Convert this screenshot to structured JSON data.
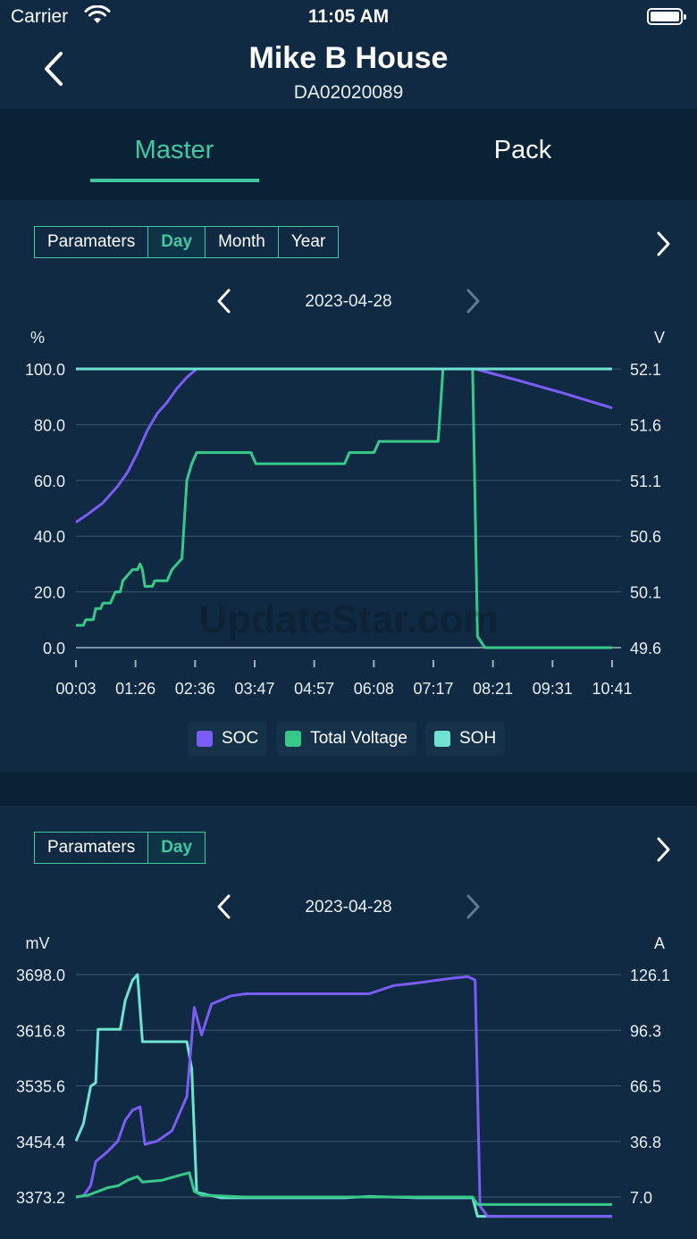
{
  "status_bar": {
    "carrier": "Carrier",
    "time": "11:05 AM"
  },
  "nav": {
    "title": "Mike B House",
    "subtitle": "DA02020089"
  },
  "tabs": [
    {
      "label": "Master",
      "active": true
    },
    {
      "label": "Pack",
      "active": false
    }
  ],
  "colors": {
    "accent": "#42c9a4",
    "soc": "#7b5cf5",
    "voltage": "#37c98a",
    "soh": "#6fe3d3",
    "background": "#0f2a42"
  },
  "watermark": "UpdateStar.com",
  "panel1": {
    "segments": [
      {
        "label": "Paramaters",
        "active": false
      },
      {
        "label": "Day",
        "active": true
      },
      {
        "label": "Month",
        "active": false
      },
      {
        "label": "Year",
        "active": false
      }
    ],
    "date": "2023-04-28",
    "legend": [
      {
        "label": "SOC",
        "color": "#7b5cf5"
      },
      {
        "label": "Total Voltage",
        "color": "#37c98a"
      },
      {
        "label": "SOH",
        "color": "#6fe3d3"
      }
    ]
  },
  "panel2": {
    "segments": [
      {
        "label": "Paramaters",
        "active": false
      },
      {
        "label": "Day",
        "active": true
      }
    ],
    "date": "2023-04-28"
  },
  "chart_data": [
    {
      "type": "line",
      "left_unit": "%",
      "right_unit": "V",
      "left_ticks": [
        "100.0",
        "80.0",
        "60.0",
        "40.0",
        "20.0",
        "0.0"
      ],
      "right_ticks": [
        "52.1",
        "51.6",
        "51.1",
        "50.6",
        "50.1",
        "49.6"
      ],
      "left_range": [
        0,
        100
      ],
      "right_range": [
        49.6,
        52.1
      ],
      "x_ticks": [
        "00:03",
        "01:26",
        "02:36",
        "03:47",
        "04:57",
        "06:08",
        "07:17",
        "08:21",
        "09:31",
        "10:41"
      ],
      "x_range_hours": [
        0.05,
        10.93
      ],
      "grid": true,
      "legend_position": "bottom-center",
      "series": [
        {
          "name": "SOC",
          "axis": "left",
          "color": "#7b5cf5",
          "points": [
            [
              0.05,
              45
            ],
            [
              0.3,
              48
            ],
            [
              0.6,
              52
            ],
            [
              0.9,
              58
            ],
            [
              1.1,
              63
            ],
            [
              1.3,
              70
            ],
            [
              1.5,
              78
            ],
            [
              1.7,
              84
            ],
            [
              1.9,
              88
            ],
            [
              2.1,
              93
            ],
            [
              2.3,
              97
            ],
            [
              2.5,
              100
            ],
            [
              8.15,
              100
            ],
            [
              9.0,
              96
            ],
            [
              10.0,
              91
            ],
            [
              10.93,
              86
            ]
          ]
        },
        {
          "name": "Total Voltage",
          "axis": "right",
          "color": "#37c98a",
          "points": [
            [
              0.05,
              49.8
            ],
            [
              0.2,
              49.8
            ],
            [
              0.25,
              49.85
            ],
            [
              0.4,
              49.85
            ],
            [
              0.45,
              49.95
            ],
            [
              0.55,
              49.95
            ],
            [
              0.6,
              50.0
            ],
            [
              0.75,
              50.0
            ],
            [
              0.85,
              50.1
            ],
            [
              0.95,
              50.1
            ],
            [
              1.0,
              50.2
            ],
            [
              1.1,
              50.25
            ],
            [
              1.2,
              50.3
            ],
            [
              1.3,
              50.3
            ],
            [
              1.35,
              50.35
            ],
            [
              1.4,
              50.3
            ],
            [
              1.45,
              50.15
            ],
            [
              1.6,
              50.15
            ],
            [
              1.65,
              50.2
            ],
            [
              1.9,
              50.2
            ],
            [
              2.0,
              50.3
            ],
            [
              2.2,
              50.4
            ],
            [
              2.3,
              51.1
            ],
            [
              2.4,
              51.25
            ],
            [
              2.5,
              51.35
            ],
            [
              3.6,
              51.35
            ],
            [
              3.7,
              51.25
            ],
            [
              5.5,
              51.25
            ],
            [
              5.6,
              51.35
            ],
            [
              6.1,
              51.35
            ],
            [
              6.2,
              51.45
            ],
            [
              7.4,
              51.45
            ],
            [
              7.5,
              52.1
            ],
            [
              8.1,
              52.1
            ],
            [
              8.2,
              49.7
            ],
            [
              8.35,
              49.6
            ],
            [
              10.93,
              49.6
            ]
          ]
        },
        {
          "name": "SOH",
          "axis": "left",
          "color": "#6fe3d3",
          "points": [
            [
              0.05,
              100
            ],
            [
              10.93,
              100
            ]
          ]
        }
      ]
    },
    {
      "type": "line",
      "left_unit": "mV",
      "right_unit": "A",
      "left_ticks": [
        "3698.0",
        "3616.8",
        "3535.6",
        "3454.4",
        "3373.2"
      ],
      "right_ticks": [
        "126.1",
        "96.3",
        "66.5",
        "36.8",
        "7.0"
      ],
      "left_range": [
        3373.2,
        3698.0
      ],
      "right_range": [
        7.0,
        126.1
      ],
      "x_range_hours": [
        0.05,
        10.93
      ],
      "grid": true,
      "series": [
        {
          "axis": "left",
          "color": "#6fe3d3",
          "points": [
            [
              0.05,
              3455
            ],
            [
              0.2,
              3480
            ],
            [
              0.35,
              3535
            ],
            [
              0.45,
              3540
            ],
            [
              0.5,
              3618
            ],
            [
              0.95,
              3618
            ],
            [
              1.05,
              3660
            ],
            [
              1.2,
              3690
            ],
            [
              1.3,
              3698
            ],
            [
              1.4,
              3600
            ],
            [
              2.3,
              3600
            ],
            [
              2.4,
              3560
            ],
            [
              2.5,
              3380
            ],
            [
              3.0,
              3372
            ],
            [
              5.5,
              3372
            ],
            [
              6.0,
              3374
            ],
            [
              7.0,
              3372
            ],
            [
              8.1,
              3372
            ],
            [
              8.2,
              3345
            ],
            [
              10.93,
              3345
            ]
          ]
        },
        {
          "axis": "left",
          "color": "#7b5cf5",
          "points": [
            [
              0.05,
              3373
            ],
            [
              0.2,
              3375
            ],
            [
              0.35,
              3390
            ],
            [
              0.45,
              3425
            ],
            [
              0.7,
              3440
            ],
            [
              0.9,
              3455
            ],
            [
              1.05,
              3485
            ],
            [
              1.2,
              3500
            ],
            [
              1.35,
              3505
            ],
            [
              1.45,
              3450
            ],
            [
              1.7,
              3455
            ],
            [
              2.0,
              3470
            ],
            [
              2.3,
              3520
            ],
            [
              2.45,
              3650
            ],
            [
              2.6,
              3610
            ],
            [
              2.8,
              3655
            ],
            [
              3.2,
              3667
            ],
            [
              3.5,
              3670
            ],
            [
              6.0,
              3670
            ],
            [
              6.5,
              3682
            ],
            [
              7.0,
              3686
            ],
            [
              7.6,
              3692
            ],
            [
              8.0,
              3695
            ],
            [
              8.15,
              3690
            ],
            [
              8.25,
              3360
            ],
            [
              8.4,
              3345
            ],
            [
              10.93,
              3345
            ]
          ]
        },
        {
          "axis": "right",
          "color": "#37c98a",
          "points": [
            [
              0.05,
              7
            ],
            [
              0.3,
              8
            ],
            [
              0.5,
              10
            ],
            [
              0.7,
              12
            ],
            [
              0.9,
              13
            ],
            [
              1.1,
              16
            ],
            [
              1.3,
              18
            ],
            [
              1.4,
              15
            ],
            [
              1.8,
              16
            ],
            [
              2.2,
              19
            ],
            [
              2.35,
              20
            ],
            [
              2.45,
              10
            ],
            [
              2.6,
              8
            ],
            [
              3.5,
              7
            ],
            [
              8.1,
              7
            ],
            [
              8.2,
              3
            ],
            [
              10.93,
              3
            ]
          ]
        }
      ]
    }
  ]
}
